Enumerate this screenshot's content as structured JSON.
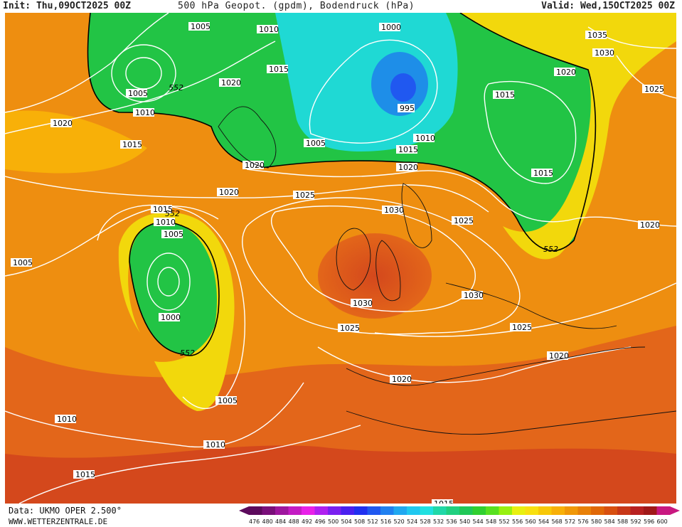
{
  "header": {
    "init": "Init: Thu,09OCT2025 00Z",
    "title": "500 hPa Geopot. (gpdm), Bodendruck (hPa)",
    "valid": "Valid: Wed,15OCT2025 00Z"
  },
  "footer": {
    "data_source": "Data: UKMO OPER 2.500°",
    "website": "WWW.WETTERZENTRALE.DE"
  },
  "legend": {
    "values": [
      "476",
      "480",
      "484",
      "488",
      "492",
      "496",
      "500",
      "504",
      "508",
      "512",
      "516",
      "520",
      "524",
      "528",
      "532",
      "536",
      "540",
      "544",
      "548",
      "552",
      "556",
      "560",
      "564",
      "568",
      "572",
      "576",
      "580",
      "584",
      "588",
      "592",
      "596",
      "600"
    ],
    "colors": [
      "#5c0a5c",
      "#7a0f7a",
      "#9e169e",
      "#c41cc4",
      "#e820e8",
      "#b020f0",
      "#7a20f0",
      "#4a20f0",
      "#2030f0",
      "#2058f0",
      "#2080f0",
      "#20a8f0",
      "#20c8f0",
      "#20e0e0",
      "#20d8a8",
      "#20d080",
      "#20c858",
      "#30d030",
      "#58e020",
      "#98f010",
      "#e8f010",
      "#f8e010",
      "#f8c808",
      "#f8b008",
      "#f09808",
      "#e88008",
      "#e06808",
      "#d85010",
      "#c83818",
      "#b82020",
      "#a01818",
      "#c81880"
    ]
  },
  "pressure_labels": [
    {
      "text": "1005"
    },
    {
      "text": "1010"
    },
    {
      "text": "1015"
    },
    {
      "text": "1020"
    },
    {
      "text": "1025"
    },
    {
      "text": "1030"
    },
    {
      "text": "1035"
    },
    {
      "text": "1000"
    },
    {
      "text": "995"
    }
  ],
  "geopot_labels": [
    {
      "text": "552"
    }
  ],
  "colors": {
    "low_green": "#22c445",
    "mid_green": "#3bd23a",
    "cyan": "#1fd9d4",
    "blue": "#1e8ee8",
    "yellow": "#f2d80c",
    "orange": "#ee8e10",
    "dark_orange": "#e3661a",
    "red": "#d4481c"
  }
}
